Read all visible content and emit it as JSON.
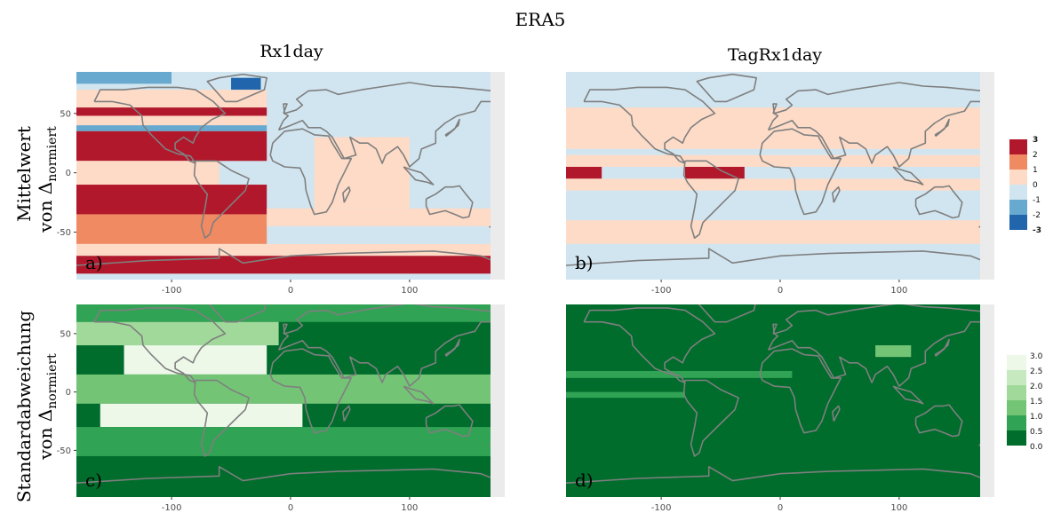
{
  "figure": {
    "title": "ERA5",
    "col_titles": [
      "Rx1day",
      "TagRx1day"
    ],
    "row_labels": [
      {
        "line1": "Mittelwert",
        "line2": "von Δ",
        "sub": "normiert"
      },
      {
        "line1": "Standardabweichung",
        "line2": "von Δ",
        "sub": "normiert"
      }
    ]
  },
  "colors": {
    "mean": {
      "-3": "#2166ac",
      "-2": "#2166ac",
      "-1": "#67a9cf",
      "0neg": "#d1e5f0",
      "0pos": "#fddbc7",
      "1": "#ef8a62",
      "2": "#ef8a62",
      "3": "#b2182b"
    },
    "sd": [
      "#006d2c",
      "#31a354",
      "#74c476",
      "#a1d99b",
      "#c7e9c0",
      "#edf8e9"
    ],
    "panel_bg": "#ebebeb",
    "coast": "#7f7f7f"
  },
  "legends": {
    "mean": {
      "labels": [
        "3",
        "2",
        "1",
        "0",
        "-1",
        "-2",
        "-3"
      ]
    },
    "sd": {
      "labels": [
        "3.0",
        "2.5",
        "2.0",
        "1.5",
        "1.0",
        "0.5",
        "0.0"
      ]
    }
  },
  "chart_data": [
    {
      "id": "a",
      "panel_label": "a)",
      "type": "heatmap",
      "title": "Rx1day",
      "row": "Mittelwert von Δnormiert",
      "scale": "mean",
      "xlim": [
        -180,
        180
      ],
      "ylim": [
        -90,
        85
      ],
      "xticks": [
        {
          "v": -100,
          "label": "-100"
        },
        {
          "v": 0,
          "label": "0"
        },
        {
          "v": 100,
          "label": "100"
        }
      ],
      "yticks": [
        {
          "v": 50,
          "label": "50"
        },
        {
          "v": 0,
          "label": "0"
        },
        {
          "v": -50,
          "label": "-50"
        }
      ],
      "bands": [
        {
          "lat": [
            75,
            85
          ],
          "lon": [
            -180,
            -100
          ],
          "v": -1
        },
        {
          "lat": [
            60,
            85
          ],
          "lon": [
            -100,
            180
          ],
          "v": -0.5
        },
        {
          "lat": [
            68,
            80
          ],
          "lon": [
            -50,
            -25
          ],
          "v": -3
        },
        {
          "lat": [
            55,
            70
          ],
          "lon": [
            -180,
            -20
          ],
          "v": 0.5
        },
        {
          "lat": [
            48,
            55
          ],
          "lon": [
            -180,
            -20
          ],
          "v": 3
        },
        {
          "lat": [
            40,
            48
          ],
          "lon": [
            -180,
            -60
          ],
          "v": 0.5
        },
        {
          "lat": [
            40,
            48
          ],
          "lon": [
            -60,
            -20
          ],
          "v": 0.5
        },
        {
          "lat": [
            35,
            40
          ],
          "lon": [
            -180,
            -20
          ],
          "v": -1
        },
        {
          "lat": [
            10,
            35
          ],
          "lon": [
            -180,
            -20
          ],
          "v": 3
        },
        {
          "lat": [
            -10,
            10
          ],
          "lon": [
            -180,
            -60
          ],
          "v": 0.5
        },
        {
          "lat": [
            -35,
            -10
          ],
          "lon": [
            -180,
            -20
          ],
          "v": 3
        },
        {
          "lat": [
            -60,
            -35
          ],
          "lon": [
            -180,
            -20
          ],
          "v": 2
        },
        {
          "lat": [
            -70,
            -60
          ],
          "lon": [
            -180,
            180
          ],
          "v": 0.5
        },
        {
          "lat": [
            -85,
            -70
          ],
          "lon": [
            -180,
            180
          ],
          "v": 3
        },
        {
          "lat": [
            -30,
            30
          ],
          "lon": [
            20,
            100
          ],
          "v": 0.5
        },
        {
          "lat": [
            -45,
            -30
          ],
          "lon": [
            -20,
            180
          ],
          "v": 0.5
        }
      ]
    },
    {
      "id": "b",
      "panel_label": "b)",
      "type": "heatmap",
      "title": "TagRx1day",
      "row": "Mittelwert von Δnormiert",
      "scale": "mean",
      "xlim": [
        -180,
        180
      ],
      "ylim": [
        -90,
        85
      ],
      "xticks": [
        {
          "v": -100,
          "label": "-100"
        },
        {
          "v": 0,
          "label": "0"
        },
        {
          "v": 100,
          "label": "100"
        }
      ],
      "yticks": [],
      "bands": [
        {
          "lat": [
            55,
            85
          ],
          "lon": [
            -180,
            180
          ],
          "v": -0.5
        },
        {
          "lat": [
            20,
            55
          ],
          "lon": [
            -180,
            180
          ],
          "v": 0.5
        },
        {
          "lat": [
            15,
            20
          ],
          "lon": [
            -180,
            180
          ],
          "v": -0.5
        },
        {
          "lat": [
            5,
            15
          ],
          "lon": [
            -180,
            180
          ],
          "v": 0.5
        },
        {
          "lat": [
            -5,
            5
          ],
          "lon": [
            -180,
            -150
          ],
          "v": 3
        },
        {
          "lat": [
            -5,
            5
          ],
          "lon": [
            -80,
            -30
          ],
          "v": 3
        },
        {
          "lat": [
            -15,
            -5
          ],
          "lon": [
            -180,
            180
          ],
          "v": 0.5
        },
        {
          "lat": [
            -40,
            -15
          ],
          "lon": [
            -180,
            180
          ],
          "v": -0.5
        },
        {
          "lat": [
            -60,
            -40
          ],
          "lon": [
            -180,
            180
          ],
          "v": 0.5
        },
        {
          "lat": [
            -85,
            -60
          ],
          "lon": [
            -180,
            180
          ],
          "v": -0.5
        }
      ]
    },
    {
      "id": "c",
      "panel_label": "c)",
      "type": "heatmap",
      "title": "Rx1day",
      "row": "Standardabweichung von Δnormiert",
      "scale": "sd",
      "xlim": [
        -180,
        180
      ],
      "ylim": [
        -90,
        75
      ],
      "xticks": [
        {
          "v": -100,
          "label": "-100"
        },
        {
          "v": 0,
          "label": "0"
        },
        {
          "v": 100,
          "label": "100"
        }
      ],
      "yticks": [
        {
          "v": 50,
          "label": "50"
        },
        {
          "v": 0,
          "label": "0"
        },
        {
          "v": -50,
          "label": "-50"
        }
      ],
      "bands": [
        {
          "lat": [
            60,
            75
          ],
          "lon": [
            -180,
            180
          ],
          "v": 0.8
        },
        {
          "lat": [
            40,
            60
          ],
          "lon": [
            -180,
            -10
          ],
          "v": 1.5
        },
        {
          "lat": [
            15,
            40
          ],
          "lon": [
            -140,
            -20
          ],
          "v": 2.8
        },
        {
          "lat": [
            -10,
            15
          ],
          "lon": [
            -180,
            180
          ],
          "v": 1.2
        },
        {
          "lat": [
            -30,
            -10
          ],
          "lon": [
            -160,
            10
          ],
          "v": 2.9
        },
        {
          "lat": [
            -55,
            -30
          ],
          "lon": [
            -180,
            180
          ],
          "v": 0.6
        },
        {
          "lat": [
            -80,
            -55
          ],
          "lon": [
            -180,
            180
          ],
          "v": 0.4
        }
      ]
    },
    {
      "id": "d",
      "panel_label": "d)",
      "type": "heatmap",
      "title": "TagRx1day",
      "row": "Standardabweichung von Δnormiert",
      "scale": "sd",
      "xlim": [
        -180,
        180
      ],
      "ylim": [
        -90,
        75
      ],
      "xticks": [
        {
          "v": -100,
          "label": "-100"
        },
        {
          "v": 0,
          "label": "0"
        },
        {
          "v": 100,
          "label": "100"
        }
      ],
      "yticks": [],
      "bands": [
        {
          "lat": [
            -90,
            75
          ],
          "lon": [
            -180,
            180
          ],
          "v": 0.2
        },
        {
          "lat": [
            12,
            18
          ],
          "lon": [
            -180,
            10
          ],
          "v": 0.8
        },
        {
          "lat": [
            -5,
            0
          ],
          "lon": [
            -180,
            -80
          ],
          "v": 0.7
        },
        {
          "lat": [
            30,
            40
          ],
          "lon": [
            80,
            110
          ],
          "v": 1.3
        }
      ]
    }
  ]
}
